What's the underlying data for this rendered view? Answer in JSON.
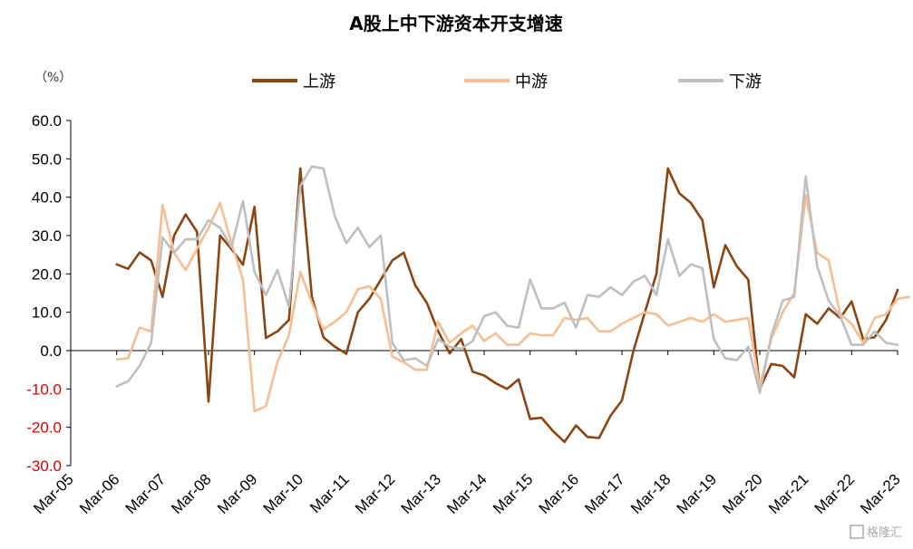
{
  "chart_data": {
    "type": "line",
    "title": "A股上中下游资本开支增速",
    "unit_label": "（%）",
    "ylim": [
      -30,
      60
    ],
    "yticks": [
      {
        "value": 60,
        "label": "60.0",
        "color": "#000000"
      },
      {
        "value": 50,
        "label": "50.0",
        "color": "#000000"
      },
      {
        "value": 40,
        "label": "40.0",
        "color": "#000000"
      },
      {
        "value": 30,
        "label": "30.0",
        "color": "#000000"
      },
      {
        "value": 20,
        "label": "20.0",
        "color": "#000000"
      },
      {
        "value": 10,
        "label": "10.0",
        "color": "#000000"
      },
      {
        "value": 0,
        "label": "0.0",
        "color": "#000000"
      },
      {
        "value": -10,
        "label": "-10.0",
        "color": "#e00000"
      },
      {
        "value": -20,
        "label": "-20.0",
        "color": "#e00000"
      },
      {
        "value": -30,
        "label": "-30.0",
        "color": "#e00000"
      }
    ],
    "xlim": [
      2005.0,
      2023.0
    ],
    "xticks": [
      {
        "value": 2005,
        "label": "Mar-05"
      },
      {
        "value": 2006,
        "label": "Mar-06"
      },
      {
        "value": 2007,
        "label": "Mar-07"
      },
      {
        "value": 2008,
        "label": "Mar-08"
      },
      {
        "value": 2009,
        "label": "Mar-09"
      },
      {
        "value": 2010,
        "label": "Mar-10"
      },
      {
        "value": 2011,
        "label": "Mar-11"
      },
      {
        "value": 2012,
        "label": "Mar-12"
      },
      {
        "value": 2013,
        "label": "Mar-13"
      },
      {
        "value": 2014,
        "label": "Mar-14"
      },
      {
        "value": 2015,
        "label": "Mar-15"
      },
      {
        "value": 2016,
        "label": "Mar-16"
      },
      {
        "value": 2017,
        "label": "Mar-17"
      },
      {
        "value": 2018,
        "label": "Mar-18"
      },
      {
        "value": 2019,
        "label": "Mar-19"
      },
      {
        "value": 2020,
        "label": "Mar-20"
      },
      {
        "value": 2021,
        "label": "Mar-21"
      },
      {
        "value": 2022,
        "label": "Mar-22"
      },
      {
        "value": 2023,
        "label": "Mar-23"
      }
    ],
    "x_start": 2006.0,
    "x_step": 0.25,
    "series": [
      {
        "name": "上游",
        "color": "#8B4513",
        "values": [
          22.5,
          21.3,
          25.6,
          23.5,
          14.0,
          30.0,
          35.5,
          31.0,
          -13.3,
          30.0,
          26.5,
          22.4,
          37.5,
          3.3,
          5.0,
          8.0,
          47.5,
          14.0,
          3.5,
          1.0,
          -0.8,
          10.0,
          13.5,
          18.5,
          23.5,
          25.5,
          17.0,
          12.5,
          5.0,
          -0.7,
          3.0,
          -5.5,
          -6.5,
          -8.5,
          -10.0,
          -7.5,
          -17.8,
          -17.5,
          -21.0,
          -23.8,
          -19.5,
          -22.5,
          -22.8,
          -17.0,
          -13.0,
          0.0,
          10.0,
          20.0,
          47.5,
          41.0,
          38.5,
          34.0,
          16.5,
          27.5,
          22.0,
          18.5,
          -10.0,
          -3.5,
          -4.0,
          -7.0,
          9.5,
          7.0,
          11.0,
          8.5,
          12.8,
          3.0,
          3.5,
          8.0,
          15.8
        ]
      },
      {
        "name": "中游",
        "color": "#F6BE92",
        "values": [
          -2.3,
          -2.0,
          6.0,
          5.0,
          38.0,
          25.5,
          21.0,
          26.5,
          32.0,
          38.5,
          28.0,
          18.5,
          -15.8,
          -14.5,
          -3.0,
          4.0,
          20.5,
          12.5,
          5.5,
          7.5,
          10.0,
          16.0,
          16.8,
          13.5,
          -1.5,
          -3.0,
          -5.0,
          -5.0,
          7.5,
          2.0,
          4.5,
          6.5,
          2.5,
          4.5,
          1.5,
          1.5,
          4.5,
          4.0,
          4.0,
          8.5,
          8.0,
          8.5,
          5.0,
          5.0,
          7.0,
          8.5,
          10.0,
          9.5,
          6.5,
          7.5,
          8.5,
          7.5,
          9.5,
          7.5,
          8.0,
          8.5,
          -9.5,
          3.0,
          10.0,
          15.0,
          40.5,
          25.5,
          23.5,
          9.5,
          7.0,
          2.0,
          8.5,
          9.5,
          13.5,
          14.0
        ]
      },
      {
        "name": "下游",
        "color": "#BFBFBF",
        "values": [
          -9.3,
          -8.0,
          -4.0,
          2.0,
          29.5,
          25.5,
          29.0,
          29.0,
          34.0,
          32.0,
          27.0,
          39.0,
          20.5,
          14.5,
          21.0,
          11.5,
          43.0,
          48.0,
          47.5,
          35.0,
          28.0,
          32.0,
          27.0,
          30.0,
          2.0,
          -2.5,
          -2.0,
          -4.0,
          3.0,
          1.0,
          0.5,
          2.5,
          9.0,
          10.0,
          6.5,
          6.0,
          18.5,
          11.0,
          11.0,
          12.5,
          6.0,
          14.5,
          14.0,
          16.5,
          14.5,
          18.0,
          19.5,
          14.5,
          29.0,
          19.5,
          22.5,
          21.5,
          3.0,
          -2.0,
          -2.5,
          1.0,
          -11.0,
          4.0,
          13.0,
          14.0,
          45.5,
          22.0,
          13.0,
          9.0,
          1.5,
          1.5,
          5.0,
          2.0,
          1.5
        ]
      }
    ],
    "legend_position": "top",
    "grid": false
  },
  "watermark": "格隆汇"
}
